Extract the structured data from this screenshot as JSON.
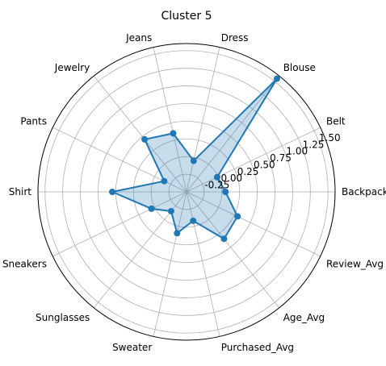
{
  "chart_data": {
    "type": "radar",
    "title": "Cluster 5",
    "categories": [
      "Backpack",
      "Belt",
      "Blouse",
      "Dress",
      "Jeans",
      "Jewelry",
      "Pants",
      "Shirt",
      "Sneakers",
      "Sunglasses",
      "Sweater",
      "Purchased_Avg",
      "Age_Avg",
      "Review_Avg"
    ],
    "series": [
      {
        "values": [
          0.05,
          -0.02,
          1.55,
          -0.05,
          0.35,
          0.45,
          -0.15,
          0.55,
          0.05,
          -0.15,
          0.1,
          -0.08,
          0.35,
          0.3
        ]
      }
    ],
    "rlim": [
      -0.5,
      1.6
    ],
    "rticks": [
      "-0.25",
      "0.00",
      "0.25",
      "0.50",
      "0.75",
      "1.00",
      "1.25",
      "1.50"
    ],
    "rtick_values": [
      -0.25,
      0.0,
      0.25,
      0.5,
      0.75,
      1.0,
      1.25,
      1.5
    ],
    "grid": true,
    "colors": {
      "line": "#1f77b4",
      "fill": "#1f77b4",
      "grid": "#b0b0b0",
      "spine": "#000000"
    }
  }
}
